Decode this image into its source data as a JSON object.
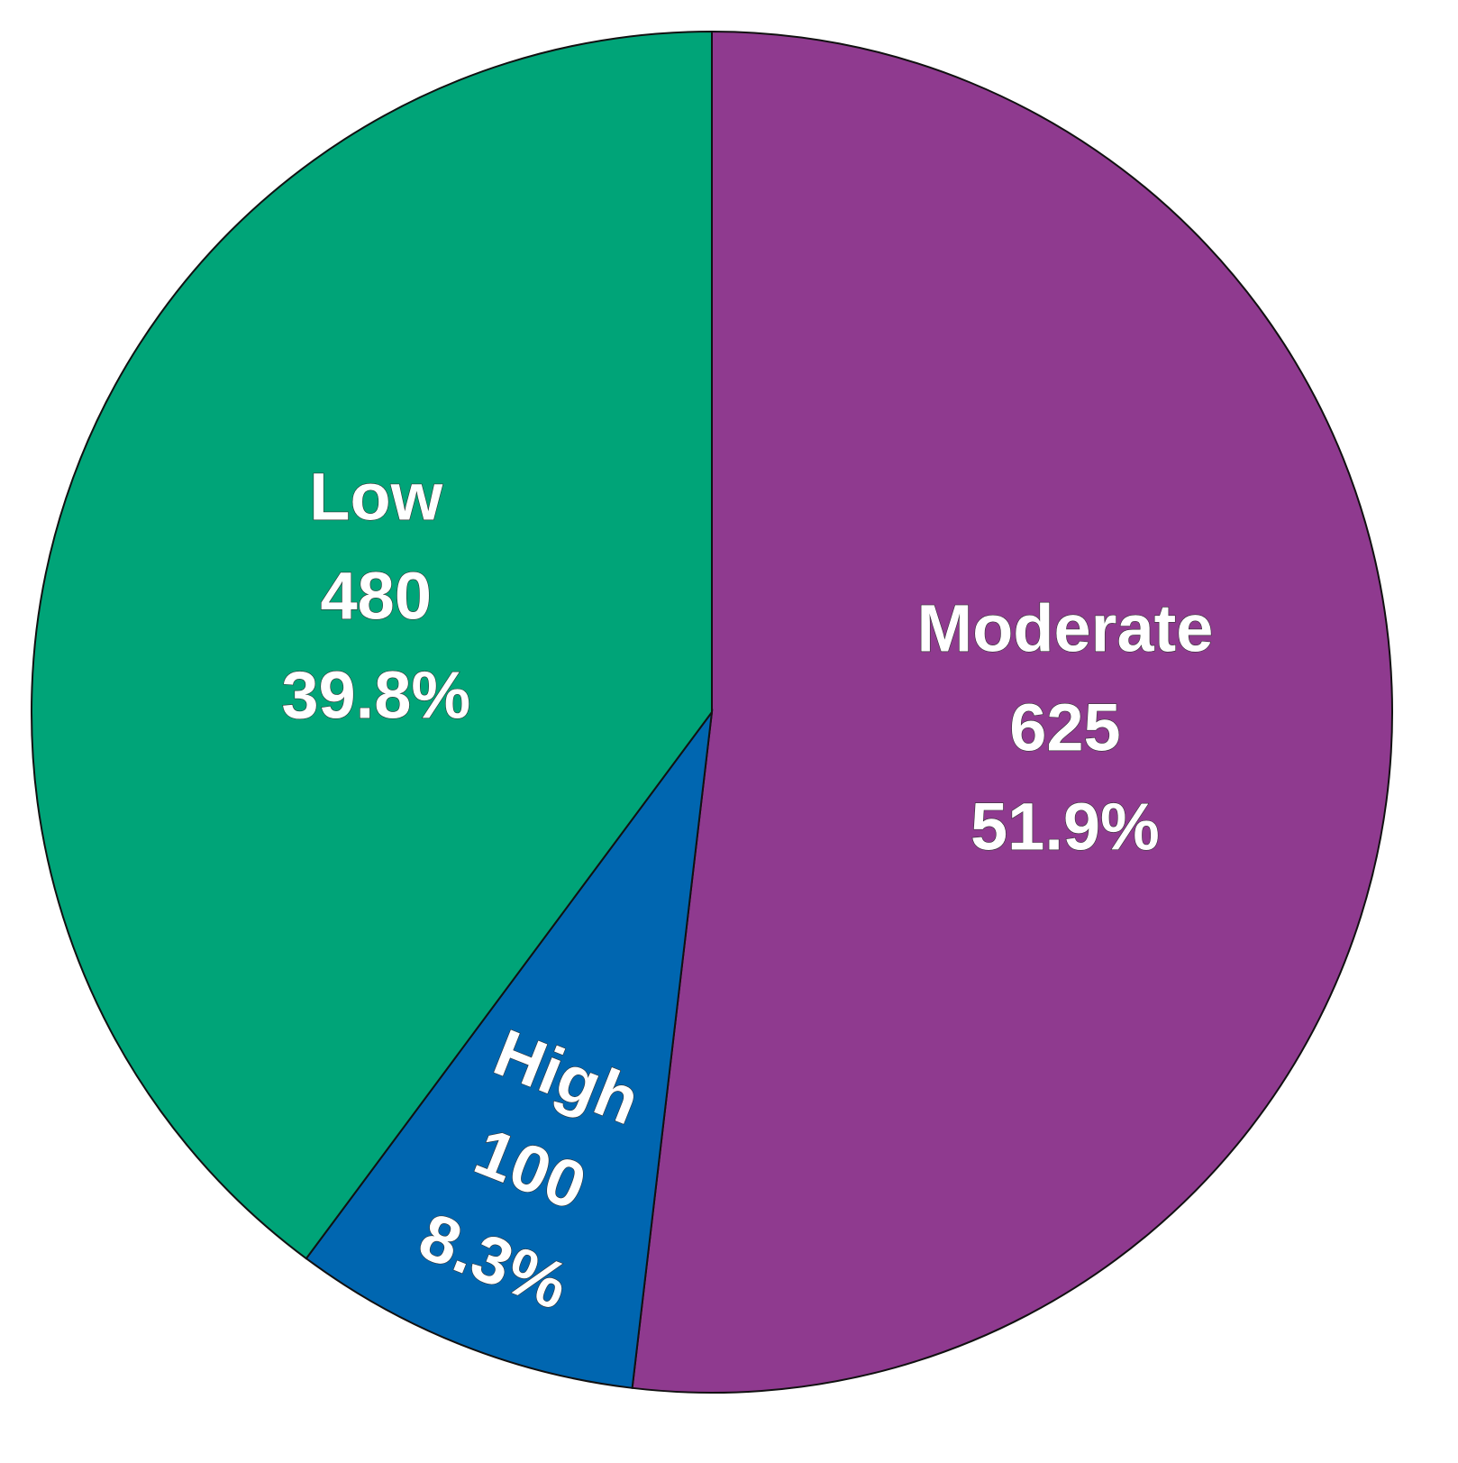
{
  "chart_data": {
    "type": "pie",
    "categories": [
      "Moderate",
      "High",
      "Low"
    ],
    "values": [
      625,
      100,
      480
    ],
    "percent_labels": [
      "51.9%",
      "8.3%",
      "39.8%"
    ],
    "colors": [
      "#8f3a8f",
      "#0066b0",
      "#00a478"
    ]
  }
}
